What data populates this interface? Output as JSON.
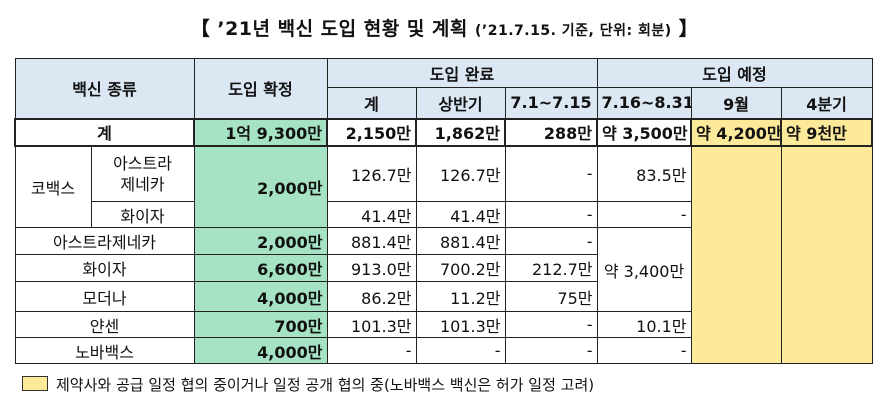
{
  "title": {
    "main": "【 ’21년 백신 도입 현황 및 계획",
    "sub": "(’21.7.15. 기준, 단위: 회분)",
    "end": "】"
  },
  "header": {
    "vaccine_type": "백신 종류",
    "confirmed": "도입 확정",
    "completed": "도입 완료",
    "planned": "도입 예정",
    "sum": "계",
    "first_half": "상반기",
    "jul1_15": "7.1~7.15",
    "jul16_aug31": "7.16~8.31",
    "september": "9월",
    "q4": "4분기"
  },
  "rows": {
    "total": {
      "label": "계",
      "confirmed": "1억 9,300만",
      "sum": "2,150만",
      "first_half": "1,862만",
      "jul": "288만",
      "jul_aug": "약 3,500만",
      "sep": "약 4,200만",
      "q4": "약 9천만"
    },
    "covax": {
      "label": "코백스",
      "confirmed": "2,000만"
    },
    "covax_az": {
      "label": "아스트라\n제네카",
      "sum": "126.7만",
      "first_half": "126.7만",
      "jul": "-",
      "jul_aug": "83.5만"
    },
    "covax_pfizer": {
      "label": "화이자",
      "sum": "41.4만",
      "first_half": "41.4만",
      "jul": "-",
      "jul_aug": "-"
    },
    "az": {
      "label": "아스트라제네카",
      "confirmed": "2,000만",
      "sum": "881.4만",
      "first_half": "881.4만",
      "jul": "-"
    },
    "pfizer": {
      "label": "화이자",
      "confirmed": "6,600만",
      "sum": "913.0만",
      "first_half": "700.2만",
      "jul": "212.7만",
      "jul_aug": "약 3,400만"
    },
    "moderna": {
      "label": "모더나",
      "confirmed": "4,000만",
      "sum": "86.2만",
      "first_half": "11.2만",
      "jul": "75만"
    },
    "janssen": {
      "label": "얀센",
      "confirmed": "700만",
      "sum": "101.3만",
      "first_half": "101.3만",
      "jul": "-",
      "jul_aug": "10.1만"
    },
    "novavax": {
      "label": "노바백스",
      "confirmed": "4,000만",
      "sum": "-",
      "first_half": "-",
      "jul": "-",
      "jul_aug": "-"
    }
  },
  "legend": {
    "text": "제약사와 공급 일정 협의 중이거나 일정 공개 협의 중(노바백스 백신은 허가 일정 고려)"
  },
  "colors": {
    "header": "#dce7f4",
    "confirmed": "#a6e3c4",
    "scheduled": "#fde99a"
  }
}
